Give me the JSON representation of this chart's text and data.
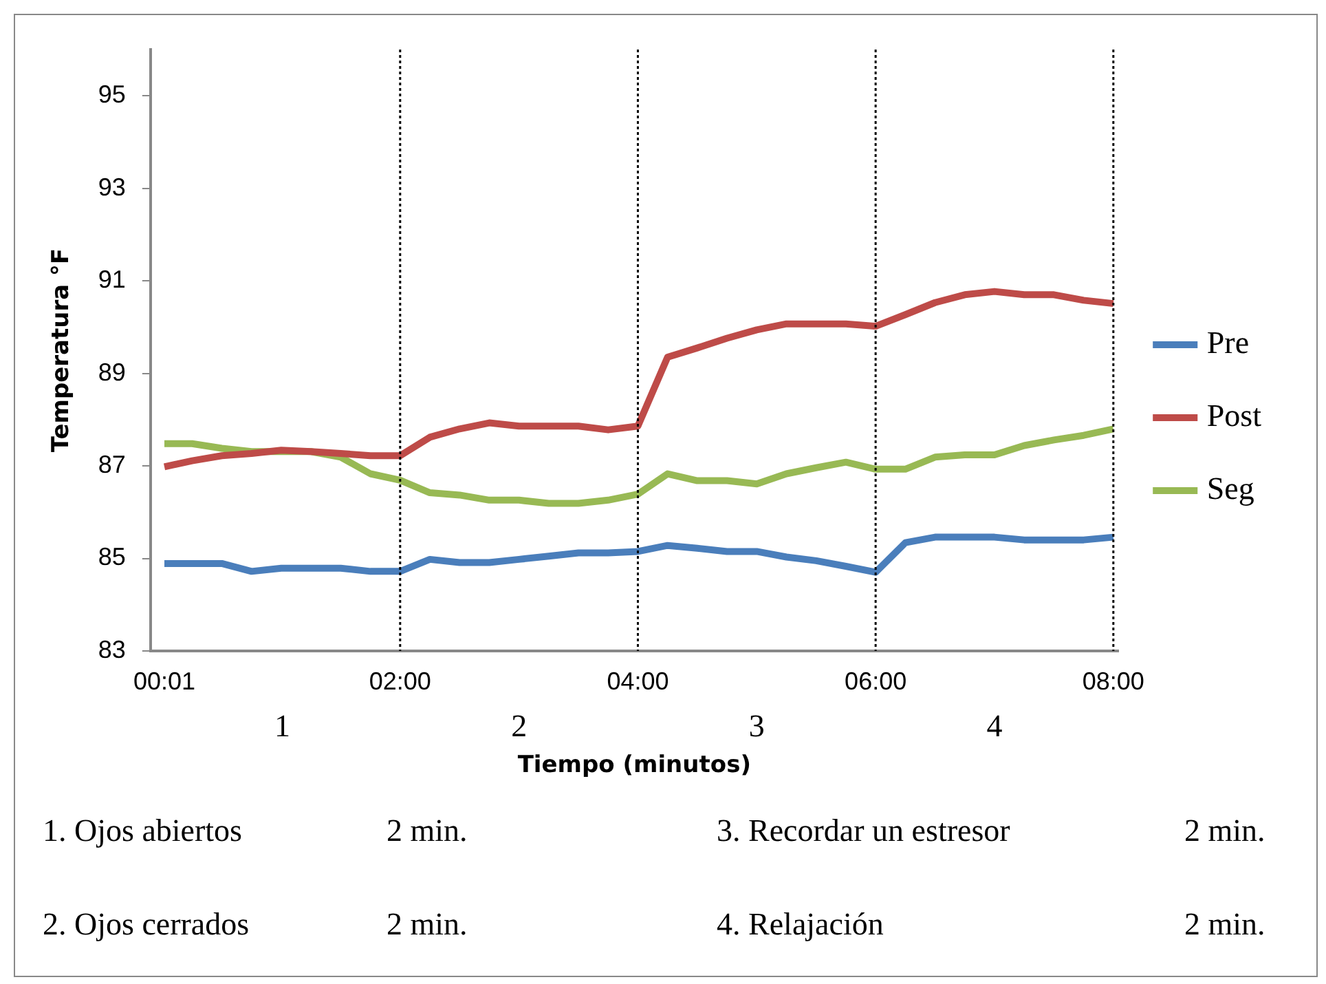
{
  "chart_data": {
    "type": "line",
    "xlabel": "Tiempo (minutos)",
    "ylabel": "Temperatura °F",
    "x": [
      0.0167,
      0.25,
      0.5,
      0.75,
      1,
      1.25,
      1.5,
      1.75,
      2,
      2.25,
      2.5,
      2.75,
      3,
      3.25,
      3.5,
      3.75,
      4,
      4.25,
      4.5,
      4.75,
      5,
      5.25,
      5.5,
      5.75,
      6,
      6.25,
      6.5,
      6.75,
      7,
      7.25,
      7.5,
      7.75,
      8
    ],
    "xlim": [
      -0.1,
      8.04
    ],
    "xticks": [
      {
        "value": 0.0167,
        "label": "00:01"
      },
      {
        "value": 2,
        "label": "02:00"
      },
      {
        "value": 4,
        "label": "04:00"
      },
      {
        "value": 6,
        "label": "06:00"
      },
      {
        "value": 8,
        "label": "08:00"
      }
    ],
    "ylim": [
      83,
      96
    ],
    "yticks": [
      83,
      85,
      87,
      89,
      91,
      93,
      95
    ],
    "series": [
      {
        "name": "Pre",
        "color": "#4a7ebb",
        "values": [
          84.89,
          84.89,
          84.89,
          84.72,
          84.79,
          84.79,
          84.79,
          84.72,
          84.72,
          84.98,
          84.91,
          84.91,
          84.98,
          85.05,
          85.12,
          85.12,
          85.15,
          85.28,
          85.22,
          85.15,
          85.15,
          85.03,
          84.95,
          84.83,
          84.7,
          85.34,
          85.46,
          85.46,
          85.46,
          85.4,
          85.4,
          85.4,
          85.46
        ]
      },
      {
        "name": "Post",
        "color": "#be4b48",
        "values": [
          86.98,
          87.11,
          87.22,
          87.27,
          87.34,
          87.31,
          87.27,
          87.22,
          87.22,
          87.62,
          87.8,
          87.93,
          87.86,
          87.86,
          87.86,
          87.78,
          87.86,
          89.35,
          89.55,
          89.76,
          89.94,
          90.07,
          90.07,
          90.07,
          90.02,
          90.27,
          90.53,
          90.7,
          90.77,
          90.7,
          90.7,
          90.58,
          90.51
        ]
      },
      {
        "name": "Seg",
        "color": "#98b954",
        "values": [
          87.48,
          87.48,
          87.38,
          87.31,
          87.31,
          87.31,
          87.19,
          86.83,
          86.69,
          86.42,
          86.37,
          86.26,
          86.26,
          86.19,
          86.19,
          86.26,
          86.39,
          86.83,
          86.68,
          86.68,
          86.61,
          86.83,
          86.96,
          87.08,
          86.93,
          86.93,
          87.19,
          87.24,
          87.24,
          87.44,
          87.56,
          87.66,
          87.8
        ]
      }
    ],
    "ref_lines": [
      {
        "axis": "x",
        "value": 2,
        "color": "#000000",
        "line_style": "dotted"
      },
      {
        "axis": "x",
        "value": 4,
        "color": "#000000",
        "line_style": "dotted"
      },
      {
        "axis": "x",
        "value": 6,
        "color": "#000000",
        "line_style": "dotted"
      },
      {
        "axis": "x",
        "value": 8,
        "color": "#000000",
        "line_style": "dotted"
      }
    ],
    "annotations": [
      "1",
      "2",
      "3",
      "4",
      "1. Ojos abiertos",
      "2 min.",
      "3. Recordar un estresor",
      "2 min.",
      "2. Ojos cerrados",
      "2 min.",
      "4. Relajación",
      "2 min."
    ],
    "grid": false,
    "legend": "right",
    "marker": "none",
    "line_style": "solid"
  }
}
